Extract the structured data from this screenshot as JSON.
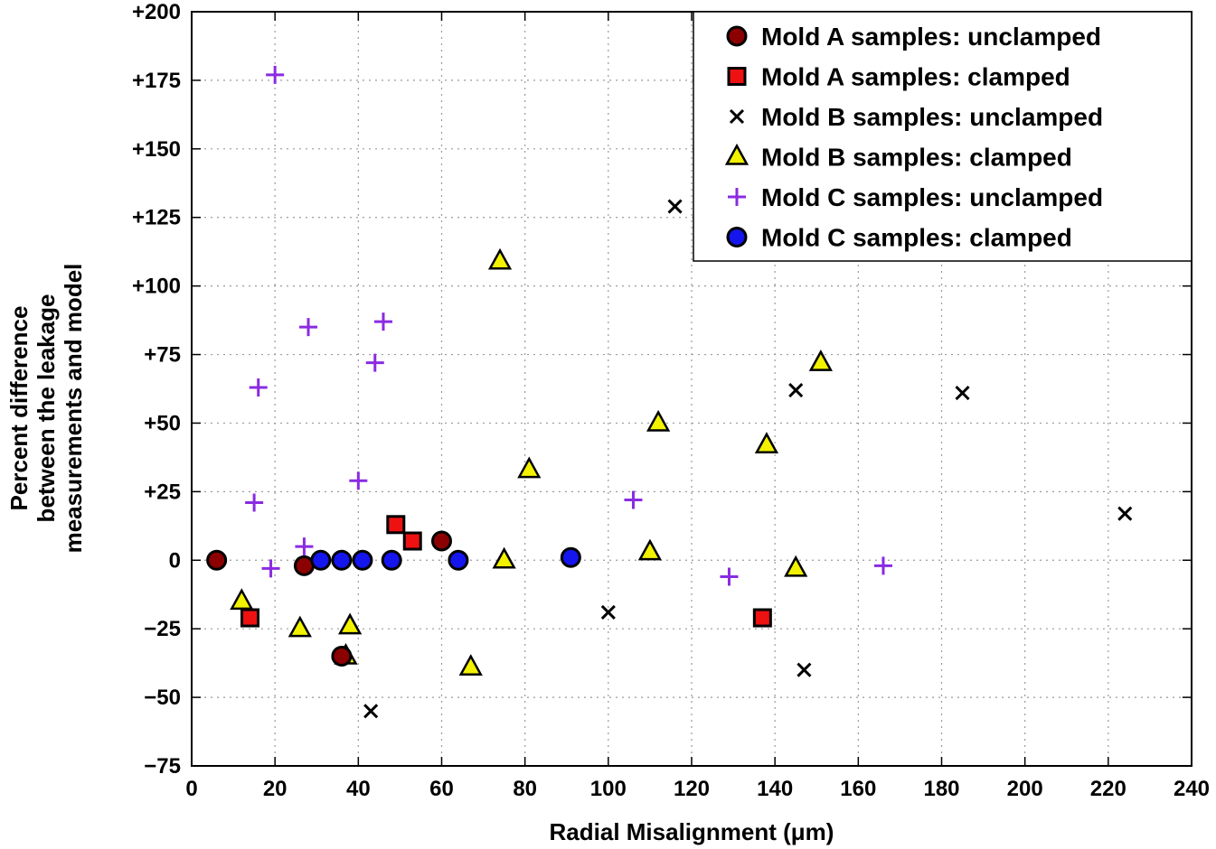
{
  "chart_data": {
    "type": "scatter",
    "title": "",
    "xlabel": "Radial Misalignment (μm)",
    "ylabel_lines": [
      "Percent difference",
      "between the leakage",
      "measurements and model"
    ],
    "xlim": [
      0,
      240
    ],
    "ylim": [
      -75,
      200
    ],
    "x_ticks": [
      0,
      20,
      40,
      60,
      80,
      100,
      120,
      140,
      160,
      180,
      200,
      220,
      240
    ],
    "x_tick_labels": [
      "0",
      "20",
      "40",
      "60",
      "80",
      "100",
      "120",
      "140",
      "160",
      "180",
      "200",
      "220",
      "240"
    ],
    "y_ticks": [
      200,
      175,
      150,
      125,
      100,
      75,
      50,
      25,
      0,
      -25,
      -50,
      -75
    ],
    "y_tick_labels": [
      "+200",
      "+175",
      "+150",
      "+125",
      "+100",
      "+75",
      "+50",
      "+25",
      "0",
      "−25",
      "−50",
      "−75"
    ],
    "grid": true,
    "legend_position": "top-right",
    "series": [
      {
        "name": "Mold A samples: unclamped",
        "marker": "circle",
        "color": "#8b0000",
        "points": [
          [
            6,
            0
          ],
          [
            27,
            -2
          ],
          [
            36,
            -35
          ],
          [
            60,
            7
          ]
        ]
      },
      {
        "name": "Mold A samples: clamped",
        "marker": "square",
        "color": "#ee1111",
        "points": [
          [
            14,
            -21
          ],
          [
            49,
            13
          ],
          [
            53,
            7
          ],
          [
            137,
            -21
          ]
        ]
      },
      {
        "name": "Mold B samples: unclamped",
        "marker": "x",
        "color": "#000000",
        "points": [
          [
            43,
            -55
          ],
          [
            100,
            -19
          ],
          [
            116,
            129
          ],
          [
            145,
            62
          ],
          [
            147,
            -40
          ],
          [
            185,
            61
          ],
          [
            224,
            17
          ]
        ]
      },
      {
        "name": "Mold B samples: clamped",
        "marker": "triangle",
        "color": "#f2f200",
        "points": [
          [
            12,
            -15
          ],
          [
            26,
            -25
          ],
          [
            37,
            -35
          ],
          [
            38,
            -24
          ],
          [
            67,
            -39
          ],
          [
            74,
            109
          ],
          [
            75,
            0
          ],
          [
            81,
            33
          ],
          [
            110,
            3
          ],
          [
            112,
            50
          ],
          [
            138,
            42
          ],
          [
            145,
            -3
          ],
          [
            151,
            72
          ]
        ]
      },
      {
        "name": "Mold C samples: unclamped",
        "marker": "plus",
        "color": "#8a2be2",
        "points": [
          [
            15,
            21
          ],
          [
            16,
            63
          ],
          [
            19,
            -3
          ],
          [
            20,
            177
          ],
          [
            27,
            5
          ],
          [
            28,
            85
          ],
          [
            40,
            29
          ],
          [
            44,
            72
          ],
          [
            46,
            87
          ],
          [
            106,
            22
          ],
          [
            129,
            -6
          ],
          [
            166,
            -2
          ]
        ]
      },
      {
        "name": "Mold C samples: clamped",
        "marker": "circle",
        "color": "#1515ee",
        "points": [
          [
            31,
            0
          ],
          [
            36,
            0
          ],
          [
            41,
            0
          ],
          [
            48,
            0
          ],
          [
            64,
            0
          ],
          [
            91,
            1
          ]
        ]
      }
    ]
  }
}
